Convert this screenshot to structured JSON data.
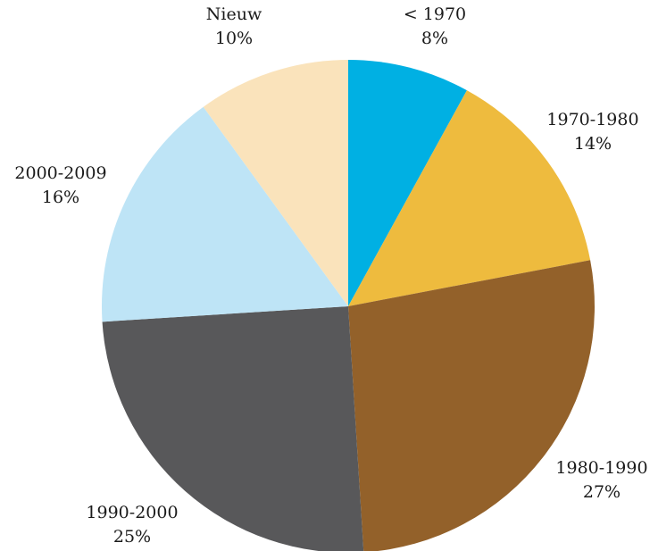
{
  "chart_data": {
    "type": "pie",
    "title": "",
    "start_angle_deg": 0,
    "direction": "clockwise",
    "slices": [
      {
        "label": "< 1970",
        "value": 8,
        "value_label": "8%",
        "color": "#00B0E3"
      },
      {
        "label": "1970-1980",
        "value": 14,
        "value_label": "14%",
        "color": "#EEBB3E"
      },
      {
        "label": "1980-1990",
        "value": 27,
        "value_label": "27%",
        "color": "#93612A"
      },
      {
        "label": "1990-2000",
        "value": 25,
        "value_label": "25%",
        "color": "#58585A"
      },
      {
        "label": "2000-2009",
        "value": 16,
        "value_label": "16%",
        "color": "#BEE4F6"
      },
      {
        "label": "Nieuw",
        "value": 10,
        "value_label": "10%",
        "color": "#FAE3BB"
      }
    ]
  }
}
